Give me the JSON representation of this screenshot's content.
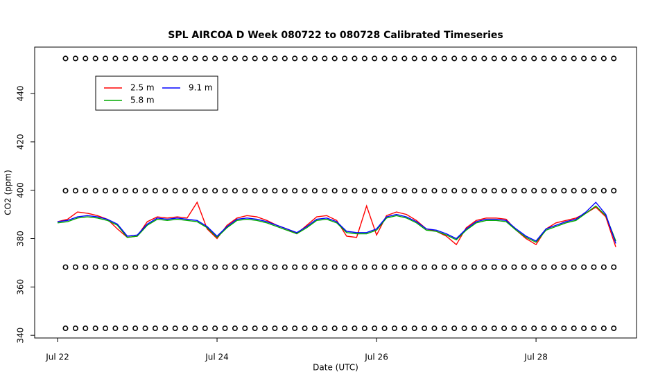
{
  "chart_data": {
    "type": "line",
    "title": "SPL AIRCOA D  Week 080722 to 080728  Calibrated Timeseries",
    "x_label": "Date (UTC)",
    "y_label": "CO2 (ppm)",
    "x": [
      0,
      0.125,
      0.25,
      0.375,
      0.5,
      0.625,
      0.75,
      0.875,
      1,
      1.125,
      1.25,
      1.375,
      1.5,
      1.625,
      1.75,
      1.875,
      2,
      2.125,
      2.25,
      2.375,
      2.5,
      2.625,
      2.75,
      2.875,
      3,
      3.125,
      3.25,
      3.375,
      3.5,
      3.625,
      3.75,
      3.875,
      4,
      4.125,
      4.25,
      4.375,
      4.5,
      4.625,
      4.75,
      4.875,
      5,
      5.125,
      5.25,
      5.375,
      5.5,
      5.625,
      5.75,
      5.875,
      6,
      6.125,
      6.25,
      6.375,
      6.5,
      6.625,
      6.75,
      6.875,
      7
    ],
    "series": [
      {
        "name": "2.5 m",
        "color": "#ff0000",
        "values": [
          387,
          388,
          391,
          390.5,
          389.5,
          388,
          384,
          380.5,
          381,
          387,
          389,
          388.5,
          389,
          388.5,
          395,
          384,
          380,
          385.5,
          388.5,
          389.5,
          389,
          387.5,
          385.5,
          384,
          382,
          385.5,
          389,
          389.5,
          387.5,
          381,
          380.5,
          393.5,
          381.5,
          389.5,
          391,
          390,
          387.5,
          384,
          383,
          381,
          377.5,
          384.5,
          387.5,
          388.5,
          388.5,
          388,
          383.5,
          380,
          377.5,
          384,
          386.5,
          387.5,
          388.5,
          390.5,
          393,
          389,
          376.5
        ]
      },
      {
        "name": "5.8 m",
        "color": "#00aa00",
        "values": [
          386.5,
          387,
          388.5,
          389,
          388.5,
          387.5,
          385.5,
          380.5,
          381,
          385.5,
          388,
          387.5,
          388,
          387.5,
          387,
          384.5,
          380.5,
          384.5,
          387.5,
          388,
          387.5,
          386.5,
          385,
          383.5,
          382,
          384.5,
          387.5,
          388,
          386.5,
          382.5,
          382,
          382,
          383.5,
          388.5,
          389.5,
          388.5,
          386.5,
          383.5,
          383,
          381.5,
          379.5,
          383.5,
          386.5,
          387.5,
          387.5,
          387,
          383.5,
          380.5,
          378.5,
          383.5,
          385,
          386.5,
          387.5,
          390.5,
          393.5,
          389.5,
          379
        ]
      },
      {
        "name": "9.1 m",
        "color": "#0000ff",
        "values": [
          387,
          387.5,
          389,
          389.5,
          389,
          388,
          386,
          381,
          381.5,
          386,
          388.5,
          388,
          388.5,
          388,
          387.5,
          385,
          381,
          385,
          388,
          388.5,
          388,
          387,
          385.5,
          384,
          382.5,
          385,
          388,
          388.5,
          387,
          383,
          382.5,
          382.5,
          384,
          389,
          390,
          389,
          387,
          384,
          383.5,
          382,
          380,
          384,
          387,
          388,
          388,
          387.5,
          384,
          381,
          379,
          384,
          385.5,
          387,
          388,
          391,
          395,
          390,
          378
        ]
      }
    ],
    "calibration": {
      "x": [
        0.1,
        0.225,
        0.35,
        0.475,
        0.6,
        0.725,
        0.85,
        0.975,
        1.1,
        1.225,
        1.35,
        1.475,
        1.6,
        1.725,
        1.85,
        1.975,
        2.1,
        2.225,
        2.35,
        2.475,
        2.6,
        2.725,
        2.85,
        2.975,
        3.1,
        3.225,
        3.35,
        3.475,
        3.6,
        3.725,
        3.85,
        3.975,
        4.1,
        4.225,
        4.35,
        4.475,
        4.6,
        4.725,
        4.85,
        4.975,
        5.1,
        5.225,
        5.35,
        5.475,
        5.6,
        5.725,
        5.85,
        5.975,
        6.1,
        6.225,
        6.35,
        6.475,
        6.6,
        6.725,
        6.85,
        6.975
      ],
      "levels": [
        454.5,
        399.8,
        368.2,
        342.9
      ]
    },
    "xlim": [
      -0.287,
      7.26
    ],
    "xticks": [
      {
        "value": 0,
        "label": "Jul 22"
      },
      {
        "value": 2,
        "label": "Jul 24"
      },
      {
        "value": 4,
        "label": "Jul 26"
      },
      {
        "value": 6,
        "label": "Jul 28"
      }
    ],
    "ylim": [
      338.9,
      459.2
    ],
    "yticks": [
      340,
      360,
      380,
      400,
      420,
      440
    ],
    "legend": "topleft",
    "grid": false
  }
}
